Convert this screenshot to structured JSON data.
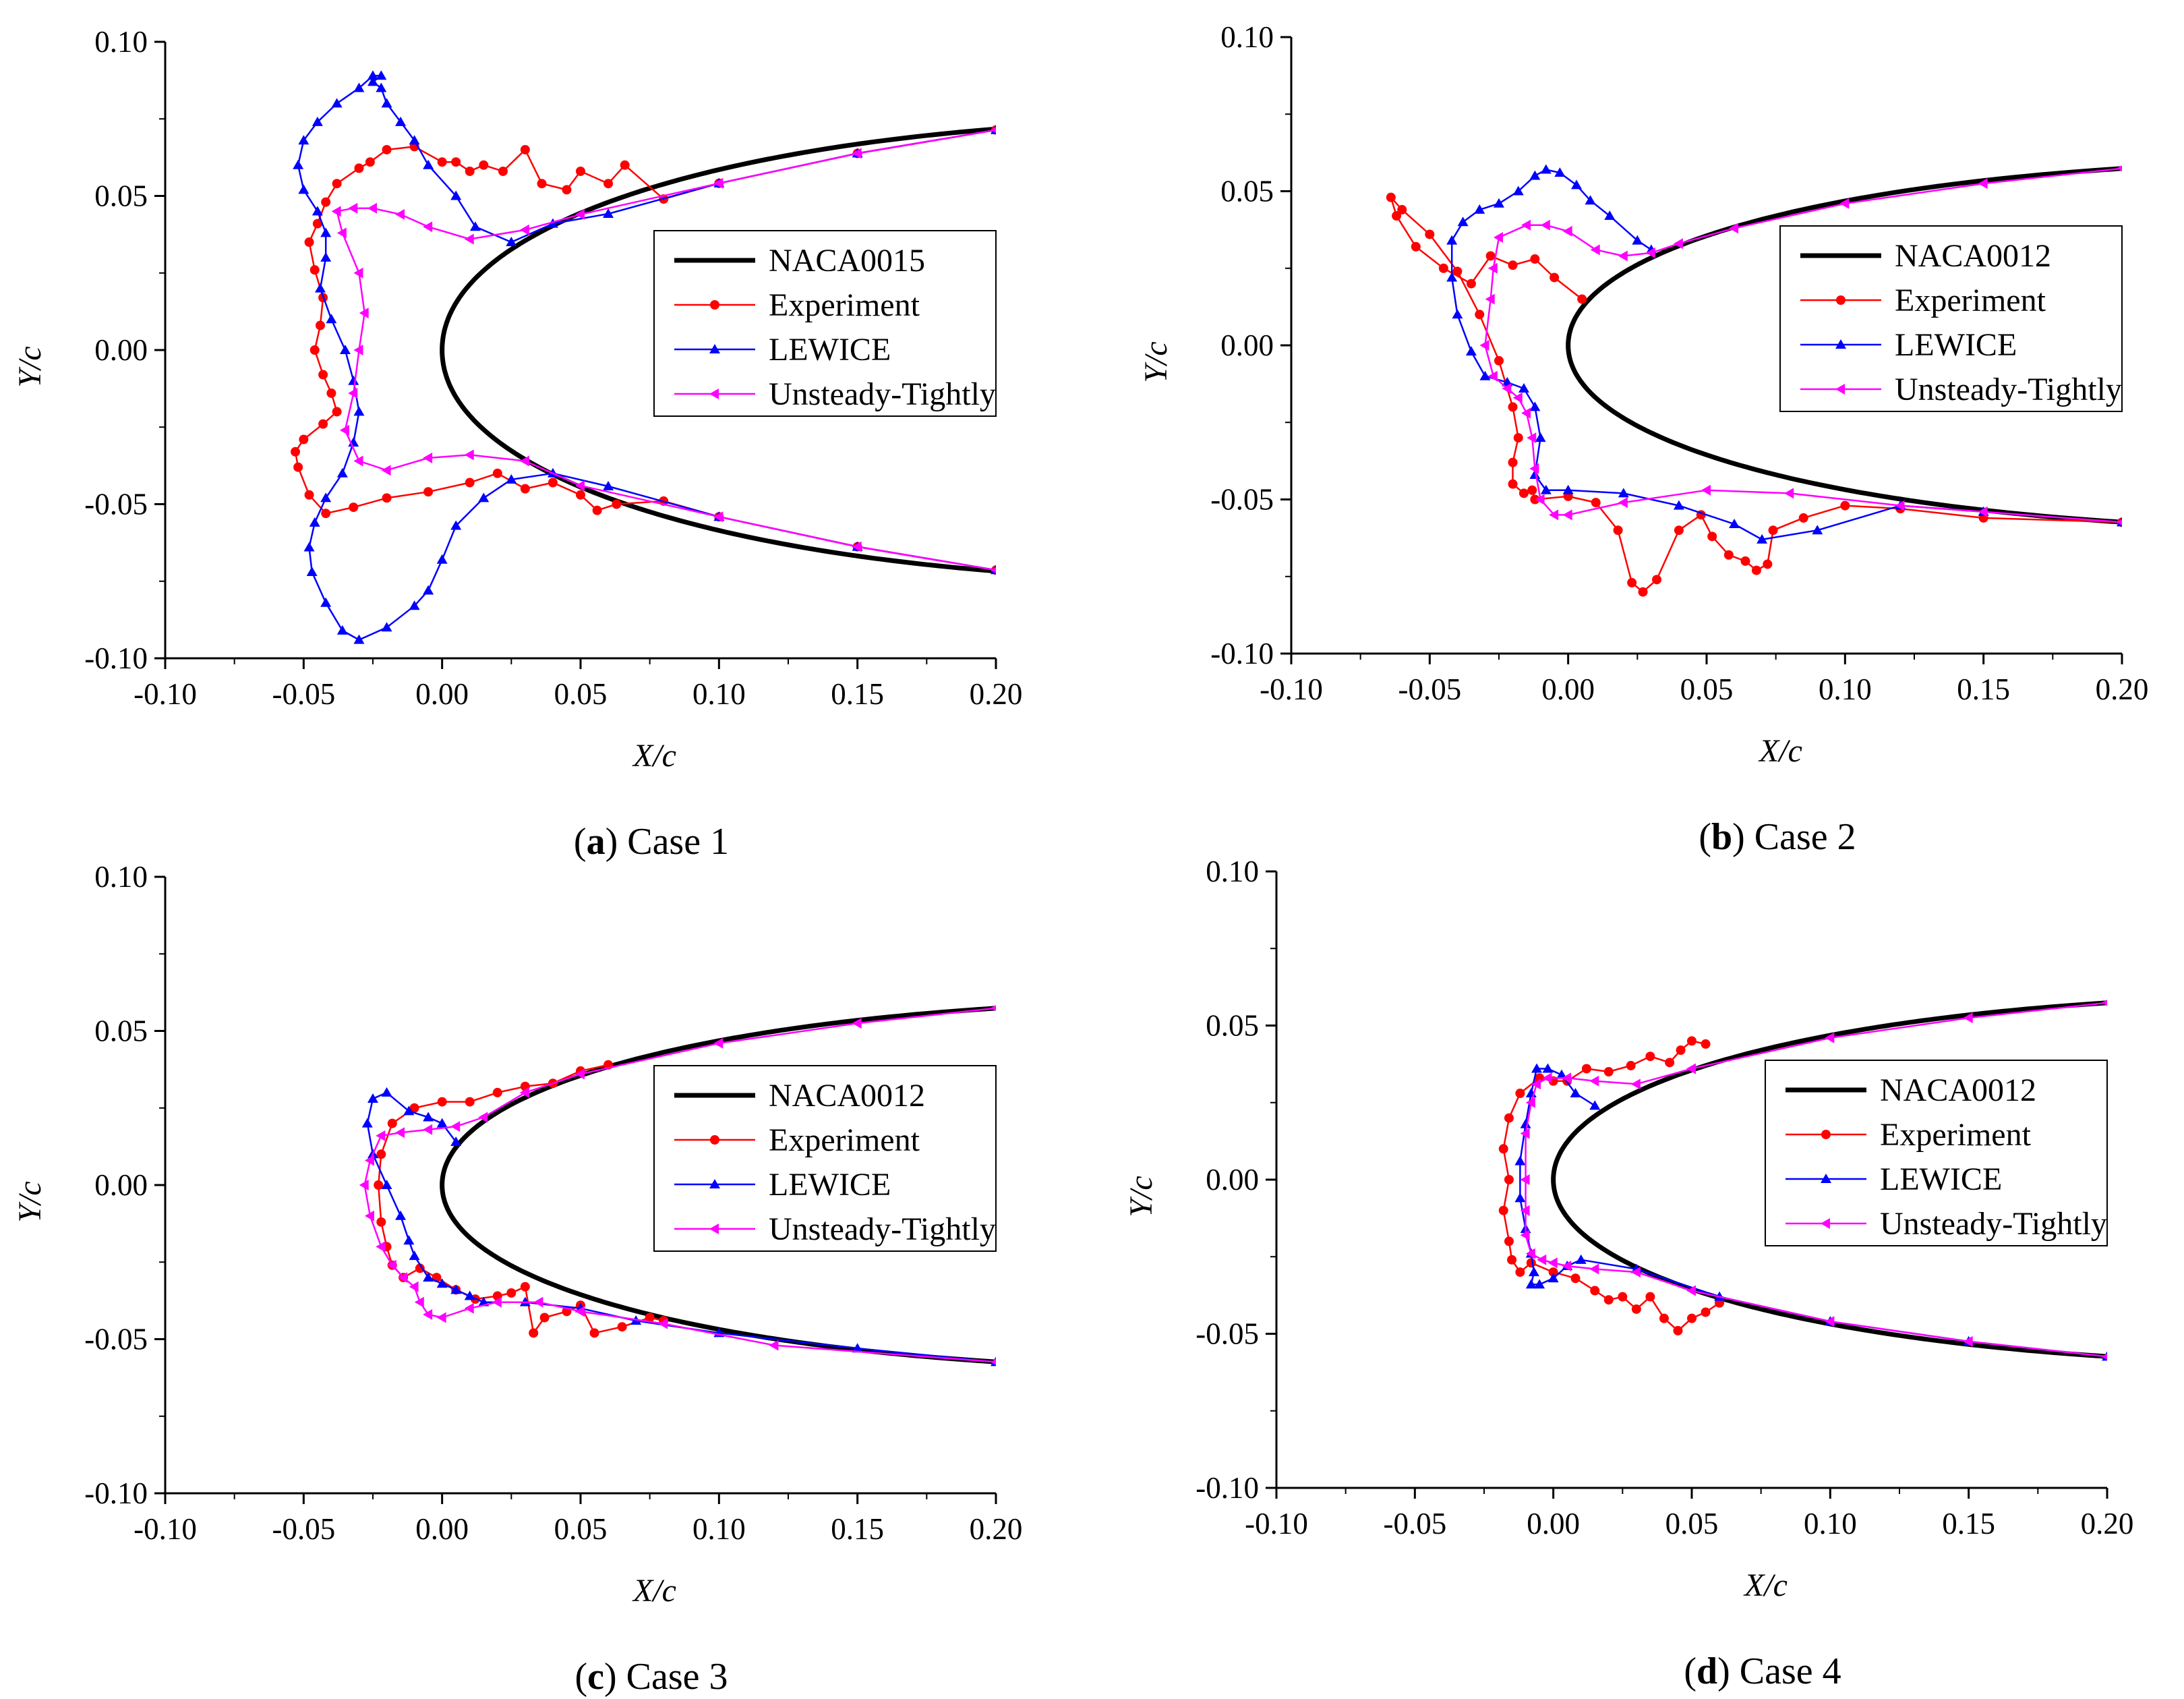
{
  "figure": {
    "colors": {
      "airfoil": "#000000",
      "experiment": "#ff0000",
      "lewice": "#0000ff",
      "unsteady": "#ff00ff"
    },
    "marker_icons": {
      "experiment": "circle-marker-icon",
      "lewice": "triangle-up-marker-icon",
      "unsteady": "triangle-left-marker-icon"
    }
  },
  "chart_data": [
    {
      "type": "line",
      "caption": {
        "letter": "a",
        "open": "(",
        "close": ")",
        "text": " Case 1"
      },
      "xlabel": "X/c",
      "ylabel": "Y/c",
      "xlim": [
        -0.1,
        0.2
      ],
      "ylim": [
        -0.1,
        0.1
      ],
      "xticks": [
        "-0.10",
        "-0.05",
        "0.00",
        "0.05",
        "0.10",
        "0.15",
        "0.20"
      ],
      "yticks": [
        "0.10",
        "0.05",
        "0.00",
        "-0.05",
        "-0.10"
      ],
      "legend_position": "upper-right",
      "series": [
        {
          "name": "NACA0015",
          "thickness": 0.15,
          "xmax": 0.2
        },
        {
          "name": "Experiment",
          "x": [
            0.2,
            0.15,
            0.1,
            0.08,
            0.066,
            0.06,
            0.05,
            0.045,
            0.036,
            0.03,
            0.022,
            0.015,
            0.01,
            0.005,
            0.0,
            -0.01,
            -0.02,
            -0.026,
            -0.03,
            -0.038,
            -0.042,
            -0.045,
            -0.048,
            -0.046,
            -0.043,
            -0.044,
            -0.046,
            -0.043,
            -0.04,
            -0.038,
            -0.043,
            -0.05,
            -0.053,
            -0.052,
            -0.048,
            -0.042,
            -0.032,
            -0.02,
            -0.005,
            0.01,
            0.02,
            0.03,
            0.04,
            0.05,
            0.056,
            0.063,
            0.08,
            0.1,
            0.15,
            0.2
          ],
          "y": [
            0.0714,
            0.0638,
            0.0541,
            0.049,
            0.06,
            0.054,
            0.058,
            0.052,
            0.054,
            0.065,
            0.058,
            0.06,
            0.058,
            0.061,
            0.061,
            0.066,
            0.065,
            0.061,
            0.059,
            0.054,
            0.048,
            0.041,
            0.035,
            0.026,
            0.017,
            0.008,
            0.0,
            -0.008,
            -0.014,
            -0.02,
            -0.024,
            -0.029,
            -0.033,
            -0.038,
            -0.047,
            -0.053,
            -0.051,
            -0.048,
            -0.046,
            -0.043,
            -0.04,
            -0.045,
            -0.043,
            -0.047,
            -0.052,
            -0.05,
            -0.049,
            -0.0541,
            -0.0638,
            -0.0714
          ]
        },
        {
          "name": "LEWICE",
          "x": [
            0.2,
            0.15,
            0.1,
            0.06,
            0.04,
            0.025,
            0.012,
            0.005,
            -0.005,
            -0.01,
            -0.015,
            -0.02,
            -0.022,
            -0.025,
            -0.022,
            -0.025,
            -0.03,
            -0.038,
            -0.045,
            -0.05,
            -0.052,
            -0.05,
            -0.045,
            -0.042,
            -0.042,
            -0.044,
            -0.04,
            -0.035,
            -0.032,
            -0.03,
            -0.032,
            -0.036,
            -0.042,
            -0.046,
            -0.048,
            -0.047,
            -0.042,
            -0.036,
            -0.03,
            -0.02,
            -0.01,
            -0.005,
            0.0,
            0.005,
            0.015,
            0.025,
            0.04,
            0.06,
            0.1,
            0.15,
            0.2
          ],
          "y": [
            0.0714,
            0.0638,
            0.0541,
            0.0442,
            0.041,
            0.035,
            0.04,
            0.05,
            0.06,
            0.068,
            0.074,
            0.08,
            0.085,
            0.087,
            0.089,
            0.089,
            0.085,
            0.08,
            0.074,
            0.068,
            0.06,
            0.052,
            0.045,
            0.038,
            0.03,
            0.02,
            0.01,
            0.0,
            -0.01,
            -0.02,
            -0.03,
            -0.04,
            -0.048,
            -0.056,
            -0.064,
            -0.072,
            -0.082,
            -0.091,
            -0.094,
            -0.09,
            -0.083,
            -0.078,
            -0.068,
            -0.057,
            -0.048,
            -0.042,
            -0.04,
            -0.0442,
            -0.0541,
            -0.0638,
            -0.0714
          ]
        },
        {
          "name": "Unsteady-Tightly",
          "x": [
            0.2,
            0.15,
            0.1,
            0.05,
            0.03,
            0.01,
            -0.005,
            -0.015,
            -0.025,
            -0.032,
            -0.038,
            -0.036,
            -0.03,
            -0.028,
            -0.03,
            -0.032,
            -0.035,
            -0.03,
            -0.02,
            -0.005,
            0.01,
            0.03,
            0.05,
            0.1,
            0.15,
            0.2
          ],
          "y": [
            0.0714,
            0.0638,
            0.0541,
            0.044,
            0.039,
            0.036,
            0.04,
            0.044,
            0.046,
            0.046,
            0.045,
            0.038,
            0.025,
            0.012,
            0.0,
            -0.014,
            -0.026,
            -0.036,
            -0.039,
            -0.035,
            -0.034,
            -0.036,
            -0.044,
            -0.0541,
            -0.0638,
            -0.0714
          ]
        }
      ]
    },
    {
      "type": "line",
      "caption": {
        "letter": "b",
        "open": "(",
        "close": ")",
        "text": " Case 2"
      },
      "xlabel": "X/c",
      "ylabel": "Y/c",
      "xlim": [
        -0.1,
        0.2
      ],
      "ylim": [
        -0.1,
        0.1
      ],
      "xticks": [
        "-0.10",
        "-0.05",
        "0.00",
        "0.05",
        "0.10",
        "0.15",
        "0.20"
      ],
      "yticks": [
        "0.10",
        "0.05",
        "0.00",
        "-0.05",
        "-0.10"
      ],
      "legend_position": "upper-right",
      "series": [
        {
          "name": "NACA0012",
          "thickness": 0.12,
          "xmax": 0.2
        },
        {
          "name": "Experiment",
          "x": [
            0.005,
            -0.005,
            -0.012,
            -0.02,
            -0.028,
            -0.035,
            -0.045,
            -0.055,
            -0.062,
            -0.064,
            -0.06,
            -0.05,
            -0.04,
            -0.032,
            -0.025,
            -0.02,
            -0.018,
            -0.02,
            -0.02,
            -0.016,
            -0.013,
            -0.012,
            0.0,
            0.01,
            0.018,
            0.023,
            0.027,
            0.032,
            0.04,
            0.048,
            0.052,
            0.058,
            0.064,
            0.068,
            0.072,
            0.074,
            0.085,
            0.1,
            0.12,
            0.15,
            0.2
          ],
          "y": [
            0.015,
            0.022,
            0.028,
            0.026,
            0.029,
            0.02,
            0.025,
            0.032,
            0.042,
            0.048,
            0.044,
            0.036,
            0.024,
            0.01,
            -0.005,
            -0.02,
            -0.03,
            -0.038,
            -0.045,
            -0.048,
            -0.047,
            -0.05,
            -0.049,
            -0.051,
            -0.06,
            -0.077,
            -0.08,
            -0.076,
            -0.06,
            -0.055,
            -0.062,
            -0.068,
            -0.07,
            -0.073,
            -0.071,
            -0.06,
            -0.056,
            -0.052,
            -0.053,
            -0.056,
            -0.0574
          ]
        },
        {
          "name": "LEWICE",
          "x": [
            0.03,
            0.025,
            0.015,
            0.008,
            0.003,
            -0.003,
            -0.008,
            -0.012,
            -0.018,
            -0.025,
            -0.032,
            -0.038,
            -0.042,
            -0.042,
            -0.04,
            -0.035,
            -0.03,
            -0.022,
            -0.016,
            -0.012,
            -0.01,
            -0.012,
            -0.008,
            0.0,
            0.02,
            0.04,
            0.06,
            0.07,
            0.09,
            0.12,
            0.15,
            0.2
          ],
          "y": [
            0.031,
            0.034,
            0.042,
            0.047,
            0.052,
            0.056,
            0.057,
            0.055,
            0.05,
            0.046,
            0.044,
            0.04,
            0.034,
            0.022,
            0.01,
            -0.002,
            -0.01,
            -0.012,
            -0.014,
            -0.02,
            -0.03,
            -0.042,
            -0.047,
            -0.047,
            -0.048,
            -0.052,
            -0.058,
            -0.063,
            -0.06,
            -0.052,
            -0.054,
            -0.0574
          ]
        },
        {
          "name": "Unsteady-Tightly",
          "x": [
            0.2,
            0.15,
            0.1,
            0.06,
            0.04,
            0.03,
            0.02,
            0.01,
            0.0,
            -0.008,
            -0.015,
            -0.025,
            -0.027,
            -0.028,
            -0.03,
            -0.027,
            -0.022,
            -0.018,
            -0.015,
            -0.013,
            -0.012,
            -0.01,
            -0.005,
            0.0,
            0.02,
            0.05,
            0.08,
            0.12,
            0.15,
            0.2
          ],
          "y": [
            0.0574,
            0.0525,
            0.046,
            0.038,
            0.033,
            0.03,
            0.029,
            0.031,
            0.037,
            0.039,
            0.039,
            0.035,
            0.025,
            0.015,
            0.0,
            -0.01,
            -0.014,
            -0.017,
            -0.022,
            -0.03,
            -0.04,
            -0.05,
            -0.055,
            -0.055,
            -0.051,
            -0.047,
            -0.048,
            -0.052,
            -0.054,
            -0.0574
          ]
        }
      ]
    },
    {
      "type": "line",
      "caption": {
        "letter": "c",
        "open": "(",
        "close": ")",
        "text": " Case 3"
      },
      "xlabel": "X/c",
      "ylabel": "Y/c",
      "xlim": [
        -0.1,
        0.2
      ],
      "ylim": [
        -0.1,
        0.1
      ],
      "xticks": [
        "-0.10",
        "-0.05",
        "0.00",
        "0.05",
        "0.10",
        "0.15",
        "0.20"
      ],
      "yticks": [
        "0.10",
        "0.05",
        "0.00",
        "-0.05",
        "-0.10"
      ],
      "legend_position": "upper-right",
      "series": [
        {
          "name": "NACA0012",
          "thickness": 0.12,
          "xmax": 0.2
        },
        {
          "name": "Experiment",
          "x": [
            0.06,
            0.05,
            0.04,
            0.03,
            0.02,
            0.01,
            0.0,
            -0.01,
            -0.018,
            -0.022,
            -0.023,
            -0.022,
            -0.02,
            -0.018,
            -0.014,
            -0.008,
            -0.002,
            0.005,
            0.012,
            0.02,
            0.025,
            0.03,
            0.033,
            0.037,
            0.045,
            0.05,
            0.055,
            0.065,
            0.075,
            0.08
          ],
          "y": [
            0.039,
            0.037,
            0.033,
            0.032,
            0.03,
            0.027,
            0.027,
            0.025,
            0.02,
            0.01,
            0.0,
            -0.012,
            -0.02,
            -0.026,
            -0.03,
            -0.027,
            -0.03,
            -0.034,
            -0.037,
            -0.036,
            -0.035,
            -0.033,
            -0.048,
            -0.043,
            -0.041,
            -0.039,
            -0.048,
            -0.046,
            -0.043,
            -0.044
          ]
        },
        {
          "name": "LEWICE",
          "x": [
            0.005,
            0.0,
            -0.005,
            -0.012,
            -0.02,
            -0.025,
            -0.027,
            -0.025,
            -0.02,
            -0.015,
            -0.012,
            -0.01,
            -0.005,
            0.0,
            0.005,
            0.01,
            0.015,
            0.03,
            0.05,
            0.07,
            0.1,
            0.15,
            0.2
          ],
          "y": [
            0.014,
            0.02,
            0.022,
            0.024,
            0.03,
            0.028,
            0.02,
            0.01,
            0.0,
            -0.01,
            -0.018,
            -0.023,
            -0.03,
            -0.032,
            -0.034,
            -0.036,
            -0.038,
            -0.038,
            -0.04,
            -0.044,
            -0.048,
            -0.053,
            -0.0574
          ]
        },
        {
          "name": "Unsteady-Tightly",
          "x": [
            0.2,
            0.15,
            0.1,
            0.05,
            0.03,
            0.015,
            0.005,
            -0.005,
            -0.015,
            -0.022,
            -0.026,
            -0.028,
            -0.026,
            -0.022,
            -0.018,
            -0.014,
            -0.01,
            -0.008,
            -0.005,
            0.0,
            0.01,
            0.02,
            0.035,
            0.05,
            0.08,
            0.12,
            0.2
          ],
          "y": [
            0.0574,
            0.0525,
            0.046,
            0.036,
            0.03,
            0.022,
            0.019,
            0.018,
            0.017,
            0.016,
            0.008,
            0.0,
            -0.01,
            -0.02,
            -0.026,
            -0.03,
            -0.033,
            -0.038,
            -0.042,
            -0.043,
            -0.04,
            -0.038,
            -0.038,
            -0.041,
            -0.045,
            -0.052,
            -0.0574
          ]
        }
      ]
    },
    {
      "type": "line",
      "caption": {
        "letter": "d",
        "open": "(",
        "close": ")",
        "text": " Case 4"
      },
      "xlabel": "X/c",
      "ylabel": "Y/c",
      "xlim": [
        -0.1,
        0.2
      ],
      "ylim": [
        -0.1,
        0.1
      ],
      "xticks": [
        "-0.10",
        "-0.05",
        "0.00",
        "0.05",
        "0.10",
        "0.15",
        "0.20"
      ],
      "yticks": [
        "0.10",
        "0.05",
        "0.00",
        "-0.05",
        "-0.10"
      ],
      "legend_position": "upper-right",
      "series": [
        {
          "name": "NACA0012",
          "thickness": 0.12,
          "xmax": 0.2
        },
        {
          "name": "Experiment",
          "x": [
            0.055,
            0.05,
            0.046,
            0.042,
            0.035,
            0.028,
            0.02,
            0.012,
            0.005,
            0.0,
            -0.005,
            -0.012,
            -0.016,
            -0.018,
            -0.016,
            -0.018,
            -0.016,
            -0.015,
            -0.012,
            -0.008,
            0.0,
            0.008,
            0.015,
            0.02,
            0.025,
            0.03,
            0.035,
            0.04,
            0.045,
            0.05,
            0.055,
            0.06
          ],
          "y": [
            0.044,
            0.045,
            0.042,
            0.038,
            0.04,
            0.037,
            0.035,
            0.036,
            0.032,
            0.032,
            0.033,
            0.028,
            0.02,
            0.01,
            0.0,
            -0.01,
            -0.02,
            -0.026,
            -0.03,
            -0.027,
            -0.03,
            -0.032,
            -0.036,
            -0.039,
            -0.038,
            -0.042,
            -0.038,
            -0.045,
            -0.049,
            -0.045,
            -0.043,
            -0.04
          ]
        },
        {
          "name": "LEWICE",
          "x": [
            0.015,
            0.008,
            0.003,
            -0.002,
            -0.006,
            -0.008,
            -0.01,
            -0.012,
            -0.012,
            -0.01,
            -0.008,
            -0.007,
            -0.008,
            -0.005,
            0.0,
            0.005,
            0.01,
            0.03,
            0.06,
            0.1,
            0.15,
            0.2
          ],
          "y": [
            0.024,
            0.028,
            0.034,
            0.036,
            0.036,
            0.028,
            0.018,
            0.006,
            -0.006,
            -0.016,
            -0.024,
            -0.03,
            -0.034,
            -0.034,
            -0.032,
            -0.028,
            -0.026,
            -0.029,
            -0.038,
            -0.046,
            -0.0525,
            -0.0574
          ]
        },
        {
          "name": "Unsteady-Tightly",
          "x": [
            0.2,
            0.15,
            0.1,
            0.05,
            0.03,
            0.015,
            0.005,
            -0.002,
            -0.006,
            -0.008,
            -0.01,
            -0.01,
            -0.01,
            -0.01,
            -0.008,
            -0.004,
            0.0,
            0.005,
            0.015,
            0.03,
            0.05,
            0.1,
            0.15,
            0.2
          ],
          "y": [
            0.0574,
            0.0525,
            0.046,
            0.036,
            0.031,
            0.032,
            0.033,
            0.033,
            0.031,
            0.025,
            0.015,
            0.0,
            -0.01,
            -0.018,
            -0.024,
            -0.026,
            -0.027,
            -0.028,
            -0.029,
            -0.03,
            -0.036,
            -0.046,
            -0.0525,
            -0.0574
          ]
        }
      ]
    }
  ]
}
